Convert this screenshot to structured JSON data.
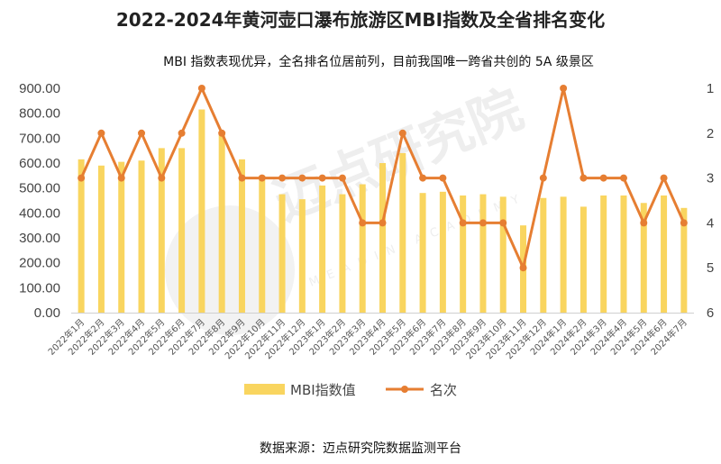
{
  "title": "2022-2024年黄河壶口瀑布旅游区MBI指数及全省排名变化",
  "subtitle": "MBI 指数表现优异，全名排名位居前列，目前我国唯一跨省共创的 5A 级景区",
  "source": "数据来源：迈点研究院数据监测平台",
  "watermark": {
    "cn": "迈点研究院",
    "en": "MEADIN ACADEMY"
  },
  "colors": {
    "bar": "#F9D55F",
    "line": "#E67E32",
    "text": "#444444"
  },
  "chart_data": {
    "type": "bar+line",
    "categories": [
      "2022年1月",
      "2022年2月",
      "2022年3月",
      "2022年4月",
      "2022年5月",
      "2022年6月",
      "2022年7月",
      "2022年8月",
      "2022年9月",
      "2022年10月",
      "2022年11月",
      "2022年12月",
      "2023年1月",
      "2023年2月",
      "2023年3月",
      "2023年4月",
      "2023年5月",
      "2023年6月",
      "2023年7月",
      "2023年8月",
      "2023年9月",
      "2023年10月",
      "2023年11月",
      "2023年12月",
      "2024年1月",
      "2024年2月",
      "2024年3月",
      "2024年4月",
      "2024年5月",
      "2024年6月",
      "2024年7月"
    ],
    "series": [
      {
        "name": "MBI指数值",
        "type": "bar",
        "axis": "left",
        "values": [
          615,
          590,
          605,
          610,
          660,
          660,
          815,
          720,
          615,
          550,
          475,
          455,
          510,
          475,
          515,
          600,
          640,
          480,
          485,
          470,
          475,
          465,
          350,
          460,
          465,
          425,
          470,
          470,
          440,
          470,
          420
        ]
      },
      {
        "name": "名次",
        "type": "line",
        "axis": "right",
        "values": [
          3,
          2,
          3,
          2,
          3,
          2,
          1,
          2,
          3,
          3,
          3,
          3,
          3,
          3,
          4,
          4,
          2,
          3,
          3,
          4,
          4,
          4,
          5,
          3,
          1,
          3,
          3,
          3,
          4,
          3,
          4
        ]
      }
    ],
    "y_left": {
      "min": 0,
      "max": 900,
      "step": 100,
      "ticks": [
        "0.00",
        "100.00",
        "200.00",
        "300.00",
        "400.00",
        "500.00",
        "600.00",
        "700.00",
        "800.00",
        "900.00"
      ]
    },
    "y_right": {
      "min": 1,
      "max": 6,
      "reversed": true,
      "ticks": [
        "1",
        "2",
        "3",
        "4",
        "5",
        "6"
      ]
    },
    "grid": false,
    "legend_position": "bottom"
  }
}
